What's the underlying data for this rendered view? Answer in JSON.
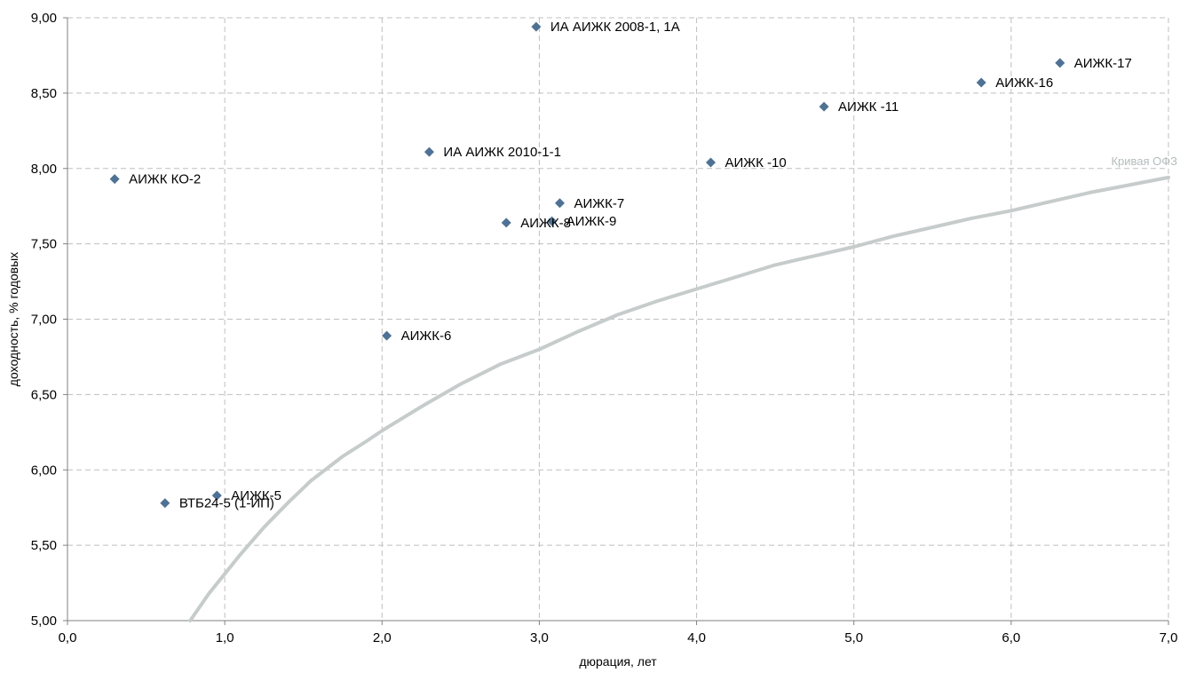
{
  "chart_data": {
    "type": "scatter",
    "xlabel": "дюрация, лет",
    "ylabel": "доходность, % годовых",
    "xlim": [
      0,
      7
    ],
    "ylim": [
      5,
      9
    ],
    "x_ticks": [
      "0,0",
      "1,0",
      "2,0",
      "3,0",
      "4,0",
      "5,0",
      "6,0",
      "7,0"
    ],
    "y_ticks": [
      "5,00",
      "5,50",
      "6,00",
      "6,50",
      "7,00",
      "7,50",
      "8,00",
      "8,50",
      "9,00"
    ],
    "grid": true,
    "points": [
      {
        "label": "АИЖК КО-2",
        "x": 0.3,
        "y": 7.93
      },
      {
        "label": "ВТБ24-5 (1-ИП)",
        "x": 0.62,
        "y": 5.78
      },
      {
        "label": "АИЖК-5",
        "x": 0.95,
        "y": 5.83
      },
      {
        "label": "АИЖК-6",
        "x": 2.03,
        "y": 6.89
      },
      {
        "label": "ИА АИЖК 2010-1-1",
        "x": 2.3,
        "y": 8.11
      },
      {
        "label": "АИЖК-8",
        "x": 2.79,
        "y": 7.64
      },
      {
        "label": "ИА АИЖК 2008-1, 1А",
        "x": 2.98,
        "y": 8.94
      },
      {
        "label": "АИЖК-9",
        "x": 3.08,
        "y": 7.65
      },
      {
        "label": "АИЖК-7",
        "x": 3.13,
        "y": 7.77
      },
      {
        "label": "АИЖК -10",
        "x": 4.09,
        "y": 8.04
      },
      {
        "label": "АИЖК -11",
        "x": 4.81,
        "y": 8.41
      },
      {
        "label": "АИЖК-16",
        "x": 5.81,
        "y": 8.57
      },
      {
        "label": "АИЖК-17",
        "x": 6.31,
        "y": 8.7
      }
    ],
    "curve": {
      "name": "Кривая ОФЗ",
      "x": [
        0.78,
        0.9,
        1.0,
        1.1,
        1.25,
        1.4,
        1.55,
        1.75,
        1.9,
        2.0,
        2.25,
        2.5,
        2.75,
        3.0,
        3.25,
        3.5,
        3.75,
        4.0,
        4.25,
        4.5,
        4.75,
        5.0,
        5.25,
        5.5,
        5.75,
        6.0,
        6.25,
        6.5,
        6.75,
        7.0
      ],
      "y": [
        5.0,
        5.18,
        5.31,
        5.44,
        5.62,
        5.78,
        5.93,
        6.09,
        6.19,
        6.26,
        6.42,
        6.57,
        6.7,
        6.8,
        6.92,
        7.03,
        7.12,
        7.2,
        7.28,
        7.36,
        7.42,
        7.48,
        7.55,
        7.61,
        7.67,
        7.72,
        7.78,
        7.84,
        7.89,
        7.94
      ]
    },
    "colors": {
      "marker": "#4f7294",
      "curve": "#c6cccb",
      "grid": "#bfbfbf",
      "axis": "#808080",
      "curve_label": "#b4bcbc"
    }
  }
}
